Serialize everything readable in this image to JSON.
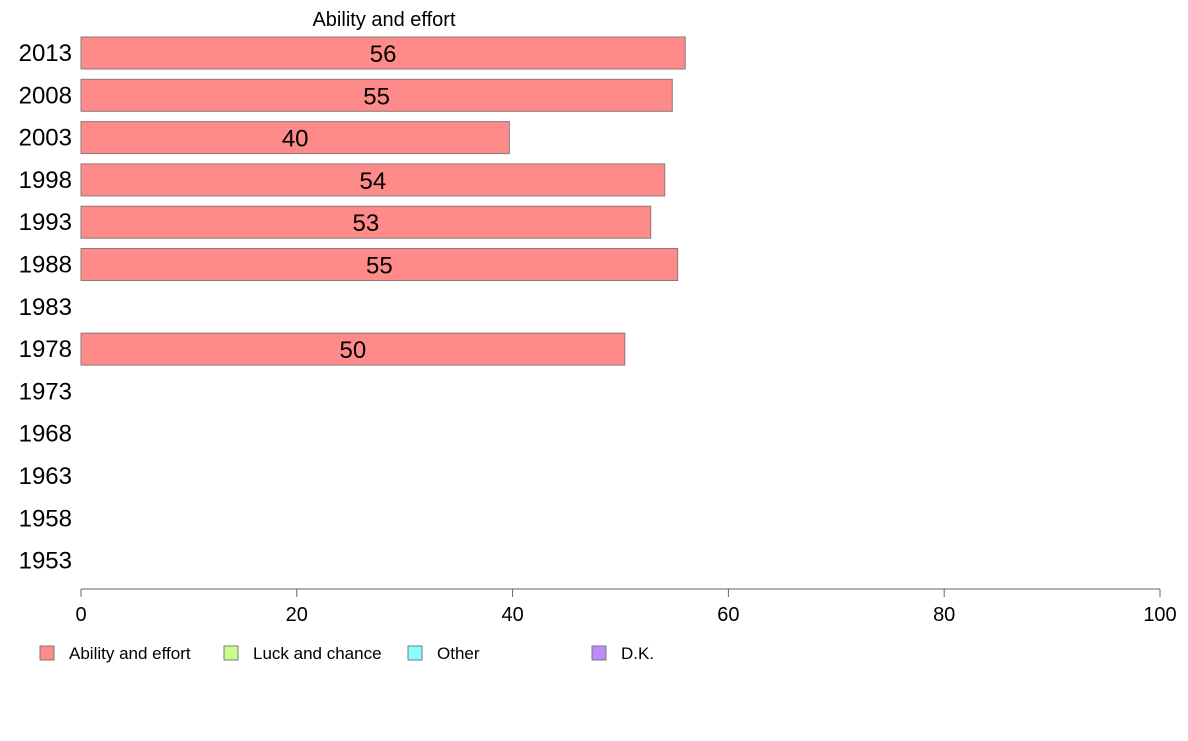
{
  "chart_data": {
    "type": "bar",
    "orientation": "horizontal",
    "panel_title": "Ability and effort",
    "categories": [
      "2013",
      "2008",
      "2003",
      "1998",
      "1993",
      "1988",
      "1983",
      "1978",
      "1973",
      "1968",
      "1963",
      "1958",
      "1953"
    ],
    "series": [
      {
        "name": "Ability and effort",
        "color": "#ff8a8a",
        "values": [
          56,
          55,
          40,
          54,
          53,
          55,
          null,
          50,
          null,
          null,
          null,
          null,
          null
        ],
        "exact": [
          56,
          54.8,
          39.7,
          54.1,
          52.8,
          55.3,
          null,
          50.4,
          null,
          null,
          null,
          null,
          null
        ]
      }
    ],
    "xlim": [
      0,
      100
    ],
    "xticks": [
      0,
      20,
      40,
      60,
      80,
      100
    ],
    "grid": false,
    "legend": {
      "position": "bottom",
      "items": [
        {
          "label": "Ability and effort",
          "color": "#ff8a8a"
        },
        {
          "label": "Luck and chance",
          "color": "#c8ff8a"
        },
        {
          "label": "Other",
          "color": "#8affff"
        },
        {
          "label": "D.K.",
          "color": "#c08aff"
        }
      ]
    }
  }
}
